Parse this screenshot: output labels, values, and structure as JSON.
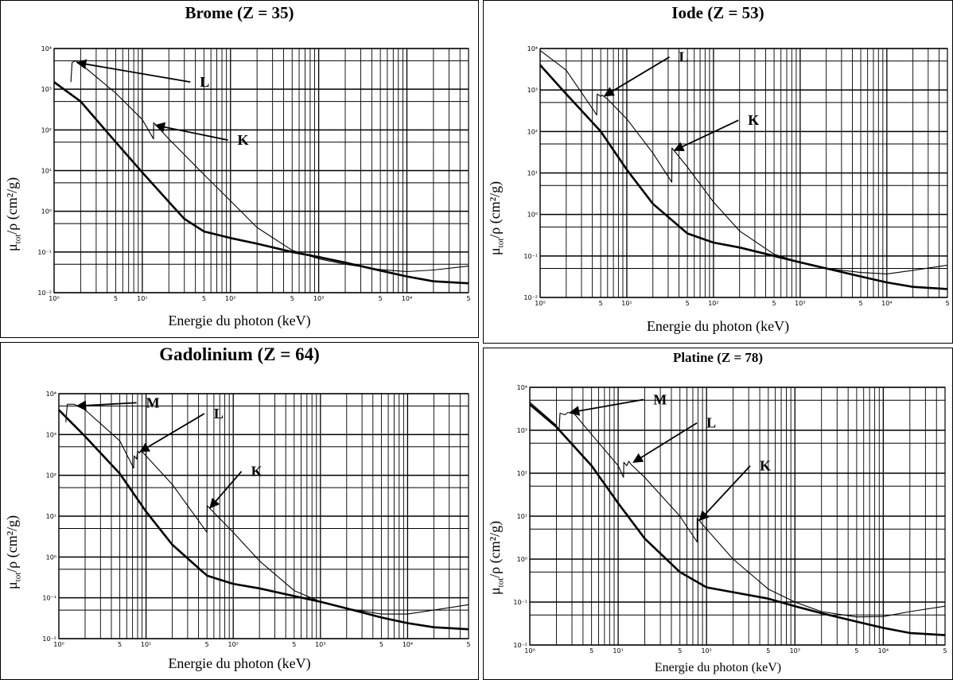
{
  "chart_data": [
    {
      "type": "line",
      "title": "Brome (Z = 35)",
      "xlabel": "Energie du photon (keV)",
      "ylabel_parts": {
        "mu": "μ",
        "sub": "tot",
        "rest": "/ρ (cm²/g)"
      },
      "xscale": "log",
      "yscale": "log",
      "xlim": [
        1,
        50000
      ],
      "ylim": [
        0.01,
        10000
      ],
      "x_ticks": [
        {
          "v": 1,
          "label": "10⁰"
        },
        {
          "v": 5,
          "label": "5"
        },
        {
          "v": 10,
          "label": "10¹"
        },
        {
          "v": 50,
          "label": "5"
        },
        {
          "v": 100,
          "label": "10²"
        },
        {
          "v": 500,
          "label": "5"
        },
        {
          "v": 1000,
          "label": "10³"
        },
        {
          "v": 5000,
          "label": "5"
        },
        {
          "v": 10000,
          "label": "10⁴"
        },
        {
          "v": 50000,
          "label": "5"
        }
      ],
      "y_ticks": [
        {
          "v": 0.01,
          "label": "10⁻²"
        },
        {
          "v": 0.1,
          "label": "10⁻¹"
        },
        {
          "v": 1,
          "label": "10⁰"
        },
        {
          "v": 10,
          "label": "10¹"
        },
        {
          "v": 100,
          "label": "10²"
        },
        {
          "v": 1000,
          "label": "10³"
        },
        {
          "v": 10000,
          "label": "10⁴"
        }
      ],
      "series": [
        {
          "style": "thin",
          "points": [
            [
              1.55,
              1500
            ],
            [
              1.6,
              4500
            ],
            [
              1.75,
              5000
            ],
            [
              2,
              4200
            ],
            [
              5,
              800
            ],
            [
              10,
              180
            ],
            [
              13.4,
              60
            ],
            [
              13.47,
              150
            ],
            [
              20,
              60
            ],
            [
              50,
              8
            ],
            [
              100,
              1.8
            ],
            [
              200,
              0.4
            ],
            [
              500,
              0.11
            ],
            [
              1000,
              0.068
            ],
            [
              2000,
              0.05
            ],
            [
              5000,
              0.037
            ],
            [
              10000,
              0.033
            ],
            [
              20000,
              0.036
            ],
            [
              50000,
              0.045
            ]
          ]
        },
        {
          "style": "thick",
          "points": [
            [
              1,
              1500
            ],
            [
              2,
              500
            ],
            [
              5,
              50
            ],
            [
              10,
              9
            ],
            [
              20,
              1.7
            ],
            [
              30,
              0.65
            ],
            [
              50,
              0.32
            ],
            [
              100,
              0.22
            ],
            [
              200,
              0.16
            ],
            [
              500,
              0.1
            ],
            [
              1000,
              0.075
            ],
            [
              2000,
              0.055
            ],
            [
              5000,
              0.035
            ],
            [
              10000,
              0.025
            ],
            [
              20000,
              0.019
            ],
            [
              50000,
              0.017
            ]
          ]
        }
      ],
      "annotations": [
        {
          "label": "L",
          "target": [
            1.75,
            4500
          ],
          "text_at": [
            45,
            1200
          ]
        },
        {
          "label": "K",
          "target": [
            13.6,
            130
          ],
          "text_at": [
            120,
            45
          ]
        }
      ]
    },
    {
      "type": "line",
      "title": "Iode (Z = 53)",
      "xlabel": "Energie du photon (keV)",
      "ylabel_parts": {
        "mu": "μ",
        "sub": "tot",
        "rest": "/ρ (cm²/g)"
      },
      "xscale": "log",
      "yscale": "log",
      "xlim": [
        1,
        50000
      ],
      "ylim": [
        0.01,
        10000
      ],
      "x_ticks": [
        {
          "v": 1,
          "label": "10⁰"
        },
        {
          "v": 5,
          "label": "5"
        },
        {
          "v": 10,
          "label": "10¹"
        },
        {
          "v": 50,
          "label": "5"
        },
        {
          "v": 100,
          "label": "10²"
        },
        {
          "v": 500,
          "label": "5"
        },
        {
          "v": 1000,
          "label": "10³"
        },
        {
          "v": 5000,
          "label": "5"
        },
        {
          "v": 10000,
          "label": "10⁴"
        },
        {
          "v": 50000,
          "label": "5"
        }
      ],
      "y_ticks": [
        {
          "v": 0.01,
          "label": "10⁻²"
        },
        {
          "v": 0.1,
          "label": "10⁻¹"
        },
        {
          "v": 1,
          "label": "10⁰"
        },
        {
          "v": 10,
          "label": "10¹"
        },
        {
          "v": 100,
          "label": "10²"
        },
        {
          "v": 1000,
          "label": "10³"
        },
        {
          "v": 10000,
          "label": "10⁴"
        }
      ],
      "series": [
        {
          "style": "thin",
          "points": [
            [
              1,
              9000
            ],
            [
              2,
              3000
            ],
            [
              4.5,
              250
            ],
            [
              4.55,
              800
            ],
            [
              5,
              700
            ],
            [
              5.2,
              750
            ],
            [
              6,
              600
            ],
            [
              10,
              200
            ],
            [
              20,
              30
            ],
            [
              33,
              6
            ],
            [
              33.2,
              40
            ],
            [
              50,
              14
            ],
            [
              100,
              2
            ],
            [
              200,
              0.4
            ],
            [
              500,
              0.11
            ],
            [
              1000,
              0.07
            ],
            [
              2000,
              0.05
            ],
            [
              5000,
              0.04
            ],
            [
              10000,
              0.037
            ],
            [
              20000,
              0.045
            ],
            [
              50000,
              0.06
            ]
          ]
        },
        {
          "style": "thick",
          "points": [
            [
              1,
              4000
            ],
            [
              2,
              800
            ],
            [
              5,
              100
            ],
            [
              10,
              12
            ],
            [
              20,
              1.8
            ],
            [
              50,
              0.35
            ],
            [
              100,
              0.21
            ],
            [
              200,
              0.16
            ],
            [
              500,
              0.1
            ],
            [
              1000,
              0.07
            ],
            [
              2000,
              0.05
            ],
            [
              5000,
              0.032
            ],
            [
              10000,
              0.023
            ],
            [
              20000,
              0.018
            ],
            [
              50000,
              0.016
            ]
          ]
        }
      ],
      "annotations": [
        {
          "label": "L",
          "target": [
            5.3,
            720
          ],
          "text_at": [
            40,
            5000
          ]
        },
        {
          "label": "K",
          "target": [
            34,
            35
          ],
          "text_at": [
            250,
            150
          ]
        }
      ]
    },
    {
      "type": "line",
      "title": "Gadolinium (Z = 64)",
      "xlabel": "Energie du photon (keV)",
      "ylabel_parts": {
        "mu": "μ",
        "sub": "tot",
        "rest": "/ρ (cm²/g)"
      },
      "xscale": "log",
      "yscale": "log",
      "xlim": [
        1,
        50000
      ],
      "ylim": [
        0.01,
        10000
      ],
      "x_ticks": [
        {
          "v": 1,
          "label": "10⁰"
        },
        {
          "v": 5,
          "label": "5"
        },
        {
          "v": 10,
          "label": "10¹"
        },
        {
          "v": 50,
          "label": "5"
        },
        {
          "v": 100,
          "label": "10²"
        },
        {
          "v": 500,
          "label": "5"
        },
        {
          "v": 1000,
          "label": "10³"
        },
        {
          "v": 5000,
          "label": "5"
        },
        {
          "v": 10000,
          "label": "10⁴"
        },
        {
          "v": 50000,
          "label": "5"
        }
      ],
      "y_ticks": [
        {
          "v": 0.01,
          "label": "10⁻²"
        },
        {
          "v": 0.1,
          "label": "10⁻¹"
        },
        {
          "v": 1,
          "label": "10⁰"
        },
        {
          "v": 10,
          "label": "10¹"
        },
        {
          "v": 100,
          "label": "10²"
        },
        {
          "v": 1000,
          "label": "10³"
        },
        {
          "v": 10000,
          "label": "10⁴"
        }
      ],
      "series": [
        {
          "style": "thin",
          "points": [
            [
              1.2,
              2000
            ],
            [
              1.25,
              5500
            ],
            [
              1.5,
              5500
            ],
            [
              2,
              4000
            ],
            [
              5,
              700
            ],
            [
              7.2,
              150
            ],
            [
              7.3,
              300
            ],
            [
              7.8,
              250
            ],
            [
              8,
              400
            ],
            [
              8.4,
              350
            ],
            [
              8.8,
              400
            ],
            [
              10,
              300
            ],
            [
              20,
              60
            ],
            [
              50,
              4
            ],
            [
              50.3,
              18
            ],
            [
              100,
              4
            ],
            [
              200,
              0.8
            ],
            [
              500,
              0.15
            ],
            [
              1000,
              0.08
            ],
            [
              2000,
              0.055
            ],
            [
              5000,
              0.04
            ],
            [
              10000,
              0.04
            ],
            [
              20000,
              0.05
            ],
            [
              50000,
              0.068
            ]
          ]
        },
        {
          "style": "thick",
          "points": [
            [
              1,
              4000
            ],
            [
              2,
              900
            ],
            [
              5,
              110
            ],
            [
              10,
              13
            ],
            [
              20,
              2
            ],
            [
              50,
              0.35
            ],
            [
              100,
              0.22
            ],
            [
              200,
              0.17
            ],
            [
              500,
              0.11
            ],
            [
              1000,
              0.08
            ],
            [
              2000,
              0.055
            ],
            [
              5000,
              0.033
            ],
            [
              10000,
              0.024
            ],
            [
              20000,
              0.019
            ],
            [
              50000,
              0.017
            ]
          ]
        }
      ],
      "annotations": [
        {
          "label": "M",
          "target": [
            1.55,
            5000
          ],
          "text_at": [
            10,
            4800
          ]
        },
        {
          "label": "L",
          "target": [
            8.2,
            380
          ],
          "text_at": [
            60,
            2600
          ]
        },
        {
          "label": "K",
          "target": [
            52,
            16
          ],
          "text_at": [
            160,
            100
          ]
        }
      ]
    },
    {
      "type": "line",
      "title": "Platine (Z = 78)",
      "xlabel": "Energie du photon (keV)",
      "ylabel_parts": {
        "mu": "μ",
        "sub": "tot",
        "rest": "/ρ (cm²/g)"
      },
      "xscale": "log",
      "yscale": "log",
      "xlim": [
        1,
        50000
      ],
      "ylim": [
        0.01,
        10000
      ],
      "x_ticks": [
        {
          "v": 1,
          "label": "10⁰"
        },
        {
          "v": 5,
          "label": "5"
        },
        {
          "v": 10,
          "label": "10¹"
        },
        {
          "v": 50,
          "label": "5"
        },
        {
          "v": 100,
          "label": "10²"
        },
        {
          "v": 500,
          "label": "5"
        },
        {
          "v": 1000,
          "label": "10³"
        },
        {
          "v": 5000,
          "label": "5"
        },
        {
          "v": 10000,
          "label": "10⁴"
        },
        {
          "v": 50000,
          "label": "5"
        }
      ],
      "y_ticks": [
        {
          "v": 0.01,
          "label": "10⁻²"
        },
        {
          "v": 0.1,
          "label": "10⁻¹"
        },
        {
          "v": 1,
          "label": "10⁰"
        },
        {
          "v": 10,
          "label": "10¹"
        },
        {
          "v": 100,
          "label": "10²"
        },
        {
          "v": 1000,
          "label": "10³"
        },
        {
          "v": 10000,
          "label": "10⁴"
        }
      ],
      "series": [
        {
          "style": "thin",
          "points": [
            [
              1,
              4500
            ],
            [
              2,
              1300
            ],
            [
              2.15,
              1000
            ],
            [
              2.2,
              2500
            ],
            [
              2.5,
              2300
            ],
            [
              2.7,
              2600
            ],
            [
              3.2,
              2400
            ],
            [
              5,
              800
            ],
            [
              10,
              150
            ],
            [
              11.5,
              80
            ],
            [
              11.6,
              180
            ],
            [
              12.5,
              150
            ],
            [
              13.2,
              190
            ],
            [
              14,
              160
            ],
            [
              20,
              80
            ],
            [
              50,
              10
            ],
            [
              78.3,
              2.5
            ],
            [
              78.4,
              9
            ],
            [
              100,
              5
            ],
            [
              200,
              1
            ],
            [
              500,
              0.2
            ],
            [
              1000,
              0.1
            ],
            [
              2000,
              0.06
            ],
            [
              5000,
              0.045
            ],
            [
              10000,
              0.046
            ],
            [
              20000,
              0.06
            ],
            [
              50000,
              0.08
            ]
          ]
        },
        {
          "style": "thick",
          "points": [
            [
              1,
              4000
            ],
            [
              2,
              1200
            ],
            [
              5,
              150
            ],
            [
              10,
              20
            ],
            [
              20,
              3
            ],
            [
              50,
              0.5
            ],
            [
              100,
              0.22
            ],
            [
              200,
              0.17
            ],
            [
              500,
              0.12
            ],
            [
              1000,
              0.08
            ],
            [
              2000,
              0.055
            ],
            [
              5000,
              0.035
            ],
            [
              10000,
              0.025
            ],
            [
              20000,
              0.019
            ],
            [
              50000,
              0.017
            ]
          ]
        }
      ],
      "annotations": [
        {
          "label": "M",
          "target": [
            2.75,
            2600
          ],
          "text_at": [
            25,
            4200
          ]
        },
        {
          "label": "L",
          "target": [
            14.3,
            180
          ],
          "text_at": [
            100,
            1200
          ]
        },
        {
          "label": "K",
          "target": [
            80,
            8
          ],
          "text_at": [
            400,
            120
          ]
        }
      ]
    }
  ]
}
